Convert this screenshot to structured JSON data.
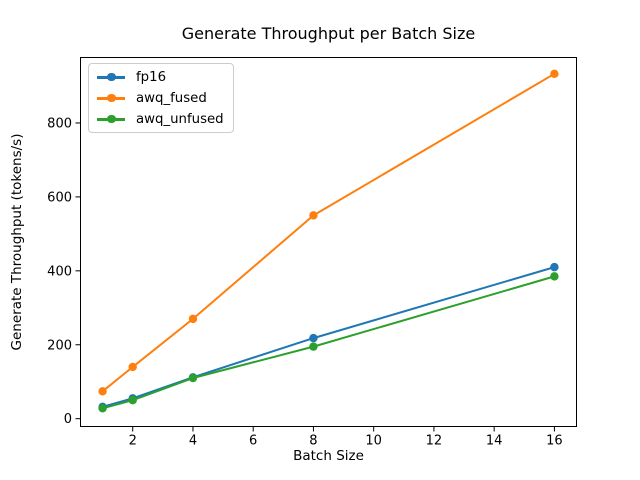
{
  "chart_data": {
    "type": "line",
    "title": "Generate Throughput per Batch Size",
    "xlabel": "Batch Size",
    "ylabel": "Generate Throughput (tokens/s)",
    "x": [
      1,
      2,
      4,
      8,
      16
    ],
    "series": [
      {
        "name": "fp16",
        "color": "#1f77b4",
        "values": [
          32,
          55,
          112,
          218,
          410
        ]
      },
      {
        "name": "awq_fused",
        "color": "#ff7f0e",
        "values": [
          74,
          140,
          270,
          550,
          933
        ]
      },
      {
        "name": "awq_unfused",
        "color": "#2ca02c",
        "values": [
          28,
          50,
          110,
          195,
          385
        ]
      }
    ],
    "xticks": [
      2,
      4,
      6,
      8,
      10,
      12,
      14,
      16
    ],
    "yticks": [
      0,
      200,
      400,
      600,
      800
    ],
    "xlim": [
      0.25,
      16.75
    ],
    "ylim": [
      -22.5,
      978.5
    ],
    "grid": false,
    "legend_position": "upper left",
    "marker": "o",
    "axis_color": "#000000",
    "tick_label_color": "#000000",
    "background_color": "#ffffff"
  }
}
